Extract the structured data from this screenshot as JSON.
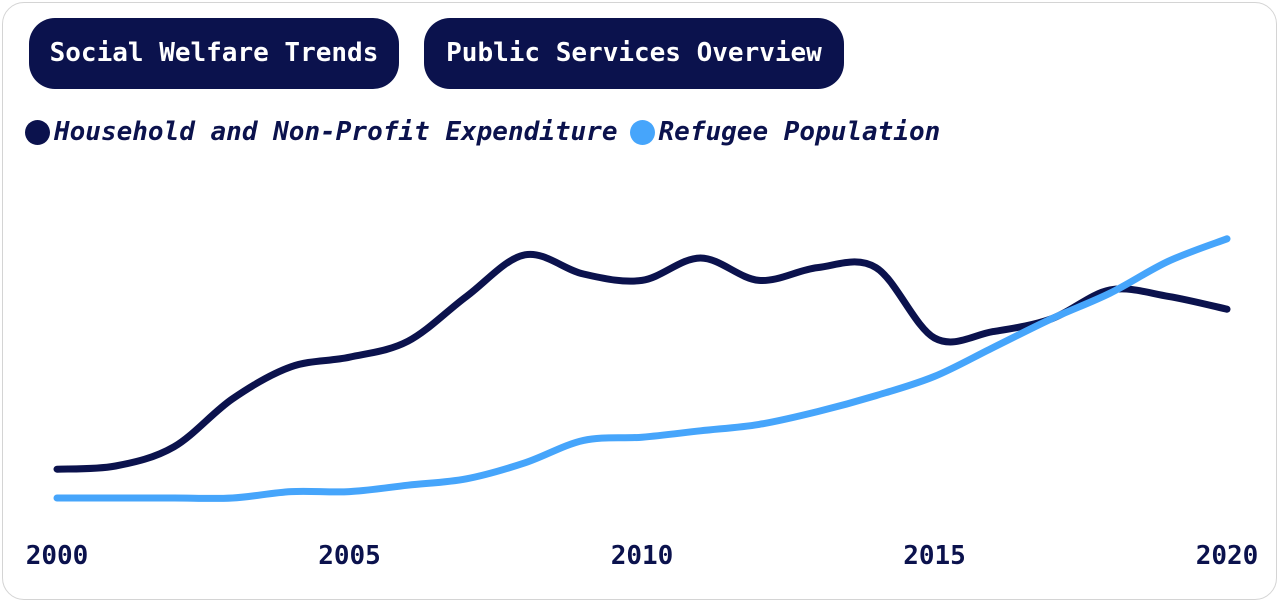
{
  "tabs": [
    {
      "label": "Social Welfare Trends"
    },
    {
      "label": "Public Services Overview"
    }
  ],
  "colors": {
    "primary": "#0b124d",
    "secondary": "#46a5fb",
    "tab_text": "#ffffff"
  },
  "chart_data": {
    "type": "line",
    "x": [
      2000,
      2001,
      2002,
      2003,
      2004,
      2005,
      2006,
      2007,
      2008,
      2009,
      2010,
      2011,
      2012,
      2013,
      2014,
      2015,
      2016,
      2017,
      2018,
      2019,
      2020
    ],
    "x_ticks": [
      "2000",
      "2005",
      "2010",
      "2015",
      "2020"
    ],
    "xlim": [
      2000,
      2020
    ],
    "ylim": [
      0,
      100
    ],
    "grid": false,
    "legend_position": "top-left",
    "series": [
      {
        "name": "Household and Non-Profit Expenditure",
        "color": "#0b124d",
        "values": [
          9,
          10,
          16,
          31,
          41,
          44,
          49,
          63,
          76,
          70,
          68,
          75,
          68,
          72,
          72,
          50,
          52,
          56,
          65,
          63,
          59
        ]
      },
      {
        "name": "Refugee Population",
        "color": "#46a5fb",
        "values": [
          0,
          0,
          0,
          0,
          2,
          2,
          4,
          6,
          11,
          18,
          19,
          21,
          23,
          27,
          32,
          38,
          47,
          56,
          64,
          74,
          81
        ]
      }
    ]
  }
}
